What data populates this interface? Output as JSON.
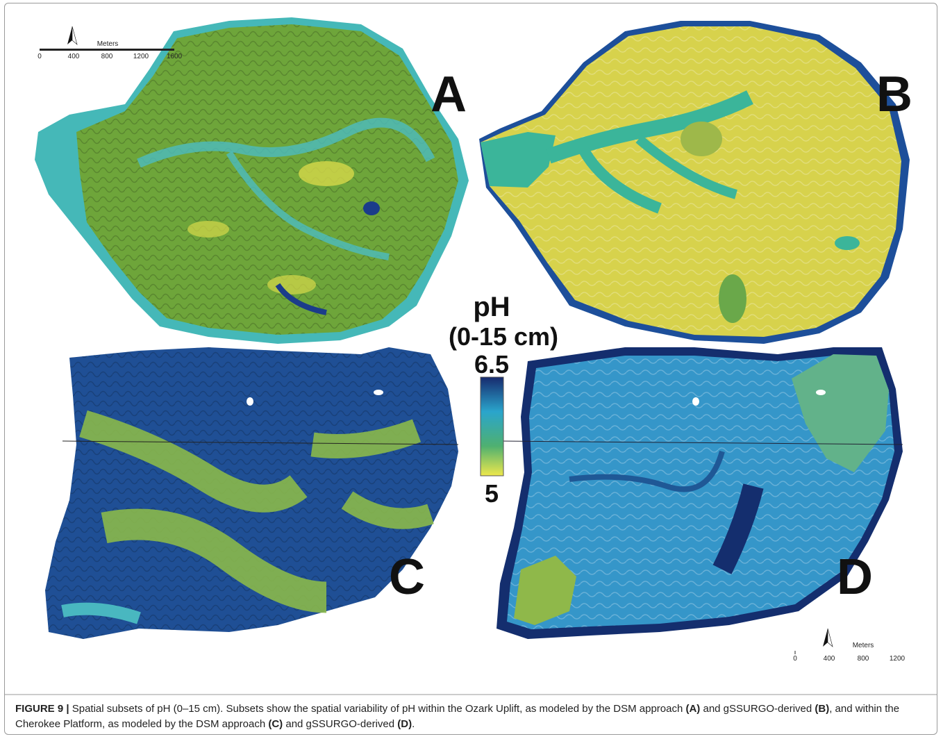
{
  "figure": {
    "scale_top": {
      "title": "Meters",
      "ticks": [
        "0",
        "400",
        "800",
        "1200",
        "1600"
      ]
    },
    "scale_bottom": {
      "title": "Meters",
      "ticks": [
        "0",
        "400",
        "800",
        "1200"
      ]
    },
    "panels": [
      "A",
      "B",
      "C",
      "D"
    ],
    "legend": {
      "title": "pH",
      "subtitle": "(0-15 cm)",
      "max": "6.5",
      "min": "5"
    }
  },
  "caption": {
    "label": "FIGURE 9 |",
    "text": [
      "Spatial subsets of pH (0–15 cm). Subsets show the spatial variability of pH within the Ozark Uplift, as modeled by the DSM approach ",
      "(A)",
      " and gSSURGO-derived ",
      "(B)",
      ", and within the Cherokee Platform, as modeled by the DSM approach ",
      "(C)",
      " and gSSURGO-derived ",
      "(D)",
      "."
    ]
  }
}
